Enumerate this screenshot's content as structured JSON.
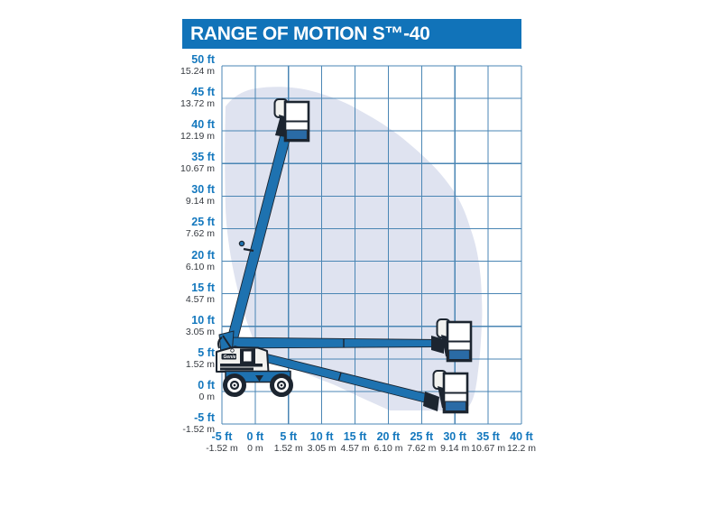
{
  "title": "RANGE OF MOTION S™-40",
  "machine": {
    "brand": "Genie",
    "model": "S-40"
  },
  "y_axis": {
    "unit_primary": "ft",
    "unit_secondary": "m",
    "ticks": [
      {
        "ft": "50 ft",
        "m": "15.24 m"
      },
      {
        "ft": "45 ft",
        "m": "13.72 m"
      },
      {
        "ft": "40 ft",
        "m": "12.19 m"
      },
      {
        "ft": "35 ft",
        "m": "10.67 m"
      },
      {
        "ft": "30 ft",
        "m": "9.14 m"
      },
      {
        "ft": "25 ft",
        "m": "7.62 m"
      },
      {
        "ft": "20 ft",
        "m": "6.10 m"
      },
      {
        "ft": "15 ft",
        "m": "4.57 m"
      },
      {
        "ft": "10 ft",
        "m": "3.05 m"
      },
      {
        "ft": "5 ft",
        "m": "1.52 m"
      },
      {
        "ft": "0 ft",
        "m": "0 m"
      },
      {
        "ft": "-5 ft",
        "m": "-1.52 m"
      }
    ]
  },
  "x_axis": {
    "unit_primary": "ft",
    "unit_secondary": "m",
    "ticks": [
      {
        "ft": "-5 ft",
        "m": "-1.52 m"
      },
      {
        "ft": "0 ft",
        "m": "0 m"
      },
      {
        "ft": "5 ft",
        "m": "1.52 m"
      },
      {
        "ft": "10 ft",
        "m": "3.05 m"
      },
      {
        "ft": "15 ft",
        "m": "4.57 m"
      },
      {
        "ft": "20 ft",
        "m": "6.10 m"
      },
      {
        "ft": "25 ft",
        "m": "7.62 m"
      },
      {
        "ft": "30 ft",
        "m": "9.14 m"
      },
      {
        "ft": "35 ft",
        "m": "10.67 m"
      },
      {
        "ft": "40 ft",
        "m": "12.2 m"
      }
    ]
  },
  "envelope_profile_ft": {
    "max_platform_height_shown": 46.5,
    "max_horizontal_reach_shown": 34,
    "below_grade_reach_shown": -3,
    "outline_points_xy_ft": [
      [
        -4.5,
        43.9
      ],
      [
        0,
        46.4
      ],
      [
        7.5,
        46.3
      ],
      [
        15.5,
        43
      ],
      [
        23,
        38
      ],
      [
        29,
        31.5
      ],
      [
        32,
        25.5
      ],
      [
        33.5,
        18.5
      ],
      [
        34,
        11.5
      ],
      [
        33.5,
        4.5
      ],
      [
        32.5,
        -0.5
      ],
      [
        31,
        -3
      ],
      [
        20,
        -3
      ],
      [
        10,
        1.5
      ],
      [
        1,
        5
      ],
      [
        -4,
        18.5
      ],
      [
        -4.5,
        32.5
      ]
    ],
    "boom_positions_shown": [
      "raised ~75° to 40 ft platform height",
      "horizontal at ~5-8 ft",
      "lowered below grade to ~30 ft reach"
    ]
  },
  "colors": {
    "header_blue": "#1173b9",
    "grid_line": "#4a86b4",
    "envelope_fill": "#dfe3f0",
    "boom_blue": "#1e72b0",
    "outline_dark": "#1c2530",
    "body_white": "#f2f2ef",
    "basket_band_blue": "#2a6ba6",
    "ft_label": "#1478be",
    "m_label": "#35393f"
  }
}
